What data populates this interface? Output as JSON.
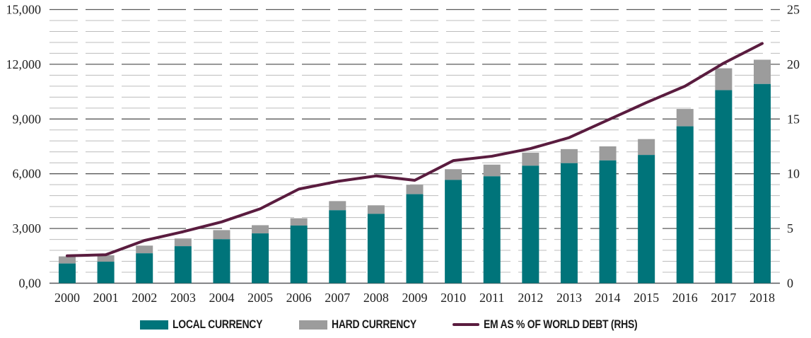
{
  "chart_data": {
    "type": "bar-line-combo",
    "title": "",
    "categories": [
      "2000",
      "2001",
      "2002",
      "2003",
      "2004",
      "2005",
      "2006",
      "2007",
      "2008",
      "2009",
      "2010",
      "2011",
      "2012",
      "2013",
      "2014",
      "2015",
      "2016",
      "2017",
      "2018"
    ],
    "series": [
      {
        "name": "LOCAL CURRENCY",
        "type": "bar",
        "stack": "debt",
        "axis": "left",
        "color": "#00747A",
        "values": [
          1080,
          1180,
          1640,
          2030,
          2410,
          2730,
          3160,
          4000,
          3800,
          4880,
          5660,
          5860,
          6440,
          6580,
          6730,
          7030,
          8600,
          10580,
          10920
        ]
      },
      {
        "name": "HARD CURRENCY",
        "type": "bar",
        "stack": "debt",
        "axis": "left",
        "color": "#9C9C9C",
        "values": [
          390,
          350,
          420,
          420,
          500,
          450,
          400,
          500,
          470,
          520,
          590,
          640,
          710,
          770,
          770,
          870,
          950,
          1200,
          1330
        ]
      },
      {
        "name": "EM AS % OF WORLD DEBT (RHS)",
        "type": "line",
        "axis": "right",
        "color": "#5A1C3F",
        "values": [
          2.5,
          2.6,
          3.9,
          4.7,
          5.6,
          6.8,
          8.6,
          9.3,
          9.8,
          9.4,
          11.2,
          11.6,
          12.3,
          13.3,
          14.9,
          16.5,
          18.0,
          20.1,
          21.9
        ]
      }
    ],
    "left_axis": {
      "min": 0,
      "max": 15000,
      "minor_step": 600,
      "major_step": 3000,
      "tick_values": [
        0,
        3000,
        6000,
        9000,
        12000,
        15000
      ],
      "tick_labels": [
        "0,00",
        "3,000",
        "6,000",
        "9,000",
        "12,000",
        "15,000"
      ]
    },
    "right_axis": {
      "min": 0,
      "max": 25,
      "tick_values": [
        0,
        5,
        10,
        15,
        20,
        25
      ],
      "tick_labels": [
        "0",
        "5",
        "10",
        "15",
        "20",
        "25"
      ]
    },
    "grid": {
      "minor_color": "#BCBCBC",
      "major_color": "#5A5A5A",
      "axis_color": "#58595B",
      "dash": [
        40,
        11
      ],
      "show": true
    },
    "text_color": "#1F1F1F",
    "legend_position": "bottom"
  },
  "legend": {
    "items": [
      {
        "label": "LOCAL CURRENCY",
        "swatch": "bar-swatch-icon"
      },
      {
        "label": "HARD CURRENCY",
        "swatch": "bar-swatch-icon"
      },
      {
        "label": "EM AS % OF WORLD DEBT (RHS)",
        "swatch": "line-swatch-icon"
      }
    ]
  }
}
